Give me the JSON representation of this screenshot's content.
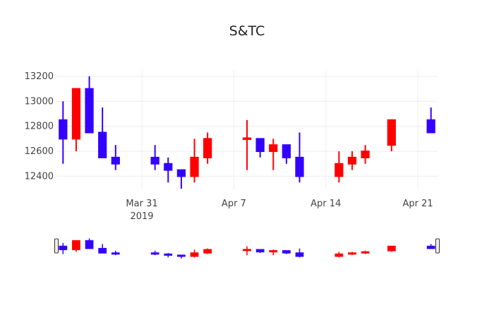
{
  "chart_data": {
    "type": "candlestick",
    "title": "S&TC",
    "x": [
      "2019-03-25",
      "2019-03-26",
      "2019-03-27",
      "2019-03-28",
      "2019-03-29",
      "2019-04-01",
      "2019-04-02",
      "2019-04-03",
      "2019-04-04",
      "2019-04-05",
      "2019-04-08",
      "2019-04-09",
      "2019-04-10",
      "2019-04-11",
      "2019-04-12",
      "2019-04-15",
      "2019-04-16",
      "2019-04-17",
      "2019-04-19",
      "2019-04-22"
    ],
    "open": [
      12850,
      12700,
      13100,
      12750,
      12550,
      12550,
      12500,
      12450,
      12400,
      12550,
      12700,
      12700,
      12600,
      12650,
      12550,
      12400,
      12500,
      12550,
      12650,
      12850
    ],
    "high": [
      13000,
      13100,
      13200,
      12950,
      12650,
      12650,
      12550,
      12450,
      12700,
      12750,
      12850,
      12700,
      12700,
      12650,
      12750,
      12600,
      12600,
      12650,
      12850,
      12950
    ],
    "low": [
      12500,
      12600,
      12750,
      12550,
      12450,
      12450,
      12350,
      12300,
      12350,
      12500,
      12450,
      12550,
      12450,
      12500,
      12350,
      12350,
      12450,
      12500,
      12600,
      12750
    ],
    "close": [
      12700,
      13100,
      12750,
      12550,
      12500,
      12500,
      12450,
      12400,
      12550,
      12700,
      12705,
      12600,
      12650,
      12550,
      12400,
      12500,
      12550,
      12600,
      12850,
      12750
    ],
    "increasing_color": "#ff0000",
    "decreasing_color": "#3300ff",
    "xlim": [
      "2019-03-24T12:00:00Z",
      "2019-04-22T12:00:00Z"
    ],
    "xticks": [
      {
        "value": "2019-03-31",
        "label": "Mar 31\n2019"
      },
      {
        "value": "2019-04-07",
        "label": "Apr 7"
      },
      {
        "value": "2019-04-14",
        "label": "Apr 14"
      },
      {
        "value": "2019-04-21",
        "label": "Apr 21"
      }
    ],
    "ylim": [
      12295,
      13245
    ],
    "yticks": [
      12400,
      12600,
      12800,
      13000,
      13200
    ],
    "grid": true,
    "rangeslider": true
  }
}
